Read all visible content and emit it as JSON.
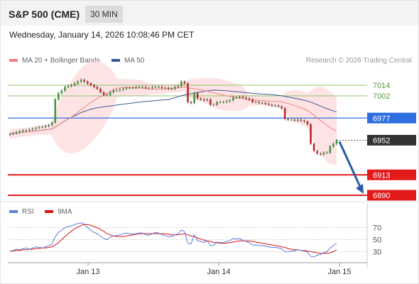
{
  "header": {
    "symbol": "S&P 500 (CME)",
    "timeframe": "30 MIN"
  },
  "datetime": "Wednesday, January 14, 2026 10:08:46 PM CET",
  "legend": {
    "bb_label": "MA 20 + Bollinger Bands",
    "bb_color": "#f08080",
    "ma50_label": "MA 50",
    "ma50_color": "#3a5a98",
    "copyright": "Research © 2026 Trading Central"
  },
  "rsi_legend": {
    "rsi_label": "RSI",
    "rsi_color": "#5b7fdc",
    "ma_label": "9MA",
    "ma_color": "#dd1111"
  },
  "chart_data": [
    {
      "type": "candlestick",
      "yrange": [
        6882,
        7022
      ],
      "x_ticks": [
        "Jan 13",
        "Jan 14",
        "Jan 15"
      ],
      "grid": false,
      "legend": "top-left",
      "close_series": [
        6959,
        6960,
        6961,
        6962,
        6963,
        6963,
        6964,
        6965,
        6966,
        6967,
        6967,
        6968,
        6969,
        6972,
        6998,
        7005,
        7008,
        7012,
        7013,
        7014,
        7016,
        7018,
        7020,
        7018,
        7016,
        7014,
        7012,
        7010,
        7006,
        7003,
        7003,
        7006,
        7008,
        7008,
        7009,
        7010,
        7011,
        7011,
        7011,
        7012,
        7012,
        7012,
        7011,
        7011,
        7012,
        7012,
        7012,
        7011,
        7011,
        7010,
        7010,
        7012,
        7013,
        7018,
        7016,
        6995,
        6994,
        7005,
        6999,
        6998,
        6997,
        6998,
        6992,
        6992,
        6995,
        6995,
        6995,
        6996,
        6997,
        7000,
        7000,
        7001,
        7000,
        6999,
        6998,
        6995,
        6995,
        6994,
        6994,
        6993,
        6992,
        6991,
        6991,
        6990,
        6988,
        6976,
        6975,
        6975,
        6974,
        6975,
        6974,
        6973,
        6970,
        6948,
        6940,
        6937,
        6936,
        6938,
        6938,
        6945,
        6948,
        6952
      ],
      "levels": [
        {
          "label": "7014",
          "value": 7014,
          "color": "#8fc46c",
          "style": "thin"
        },
        {
          "label": "7002",
          "value": 7002,
          "color": "#8fc46c",
          "style": "thin"
        },
        {
          "label": "6977",
          "value": 6977,
          "color": "#2f6fe0",
          "style": "tag"
        },
        {
          "label": "6952",
          "value": 6952,
          "color": "#333333",
          "style": "last"
        },
        {
          "label": "6913",
          "value": 6913,
          "color": "#e21b1b",
          "style": "tag"
        },
        {
          "label": "6890",
          "value": 6890,
          "color": "#e21b1b",
          "style": "tag"
        }
      ],
      "indicators": [
        "MA 20 + Bollinger Bands",
        "MA 50"
      ],
      "projection": {
        "from": 6952,
        "to": 6890,
        "color": "#2b5aa8"
      }
    },
    {
      "type": "line",
      "name": "RSI",
      "yrange": [
        15,
        85
      ],
      "y_ticks": [
        30,
        50,
        70
      ],
      "rsi": [
        30,
        32,
        34,
        33,
        35,
        36,
        34,
        36,
        38,
        37,
        36,
        38,
        40,
        42,
        55,
        62,
        66,
        70,
        72,
        73,
        75,
        77,
        78,
        76,
        70,
        66,
        62,
        60,
        56,
        52,
        50,
        54,
        56,
        57,
        58,
        60,
        61,
        60,
        59,
        60,
        61,
        61,
        58,
        57,
        60,
        62,
        61,
        58,
        57,
        55,
        55,
        58,
        60,
        66,
        63,
        44,
        43,
        58,
        48,
        47,
        45,
        48,
        40,
        40,
        46,
        45,
        45,
        47,
        48,
        52,
        51,
        52,
        49,
        47,
        45,
        41,
        41,
        40,
        40,
        39,
        38,
        37,
        37,
        36,
        35,
        30,
        30,
        31,
        31,
        33,
        32,
        31,
        29,
        22,
        21,
        24,
        25,
        28,
        30,
        36,
        40,
        44
      ],
      "ma9": [
        31,
        31,
        32,
        32,
        33,
        33,
        34,
        34,
        35,
        35,
        36,
        36,
        37,
        38,
        41,
        45,
        50,
        55,
        60,
        64,
        68,
        71,
        74,
        75,
        75,
        74,
        72,
        70,
        67,
        64,
        60,
        58,
        56,
        55,
        55,
        55,
        56,
        57,
        58,
        59,
        60,
        60,
        60,
        60,
        60,
        60,
        60,
        60,
        60,
        59,
        58,
        58,
        58,
        59,
        60,
        58,
        56,
        55,
        53,
        51,
        49,
        48,
        47,
        45,
        45,
        44,
        44,
        44,
        45,
        46,
        47,
        48,
        48,
        48,
        48,
        47,
        46,
        45,
        44,
        43,
        42,
        41,
        40,
        39,
        38,
        37,
        35,
        34,
        33,
        33,
        32,
        32,
        31,
        30,
        29,
        28,
        27,
        27,
        27,
        28,
        30,
        33
      ]
    }
  ]
}
